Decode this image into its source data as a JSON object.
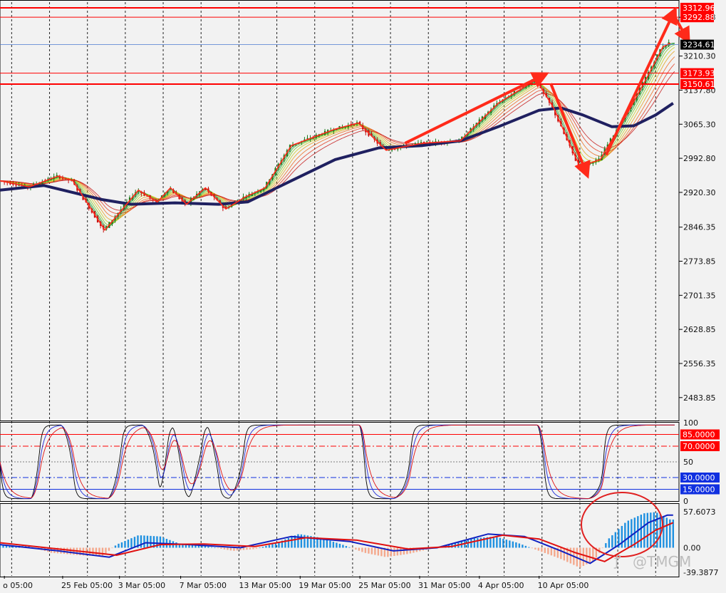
{
  "colors": {
    "background": "#f2f2f2",
    "grid": "#222222",
    "bull": "#1a7a1a",
    "bear": "#c01010",
    "ma_thick": "#1f2060",
    "level_red": "#ff0000",
    "price_line": "#4a7bd0",
    "arrow": "#ff2a1a",
    "osc_black": "#000000",
    "osc_blue": "#1f2ad8",
    "osc_red": "#e01010",
    "hist_pos": "#1e90e0",
    "hist_neg": "#f4a88c",
    "signal_blue": "#1020c0",
    "signal_red": "#e01010",
    "level_blue": "#1030e0",
    "ribbon": [
      "#0a7f2a",
      "#2aa52a",
      "#7ac41e",
      "#c7cf1a",
      "#e3a21b",
      "#ea6a1c",
      "#e33a1c",
      "#c41a1a"
    ]
  },
  "chart_data": [
    {
      "type": "candlestick",
      "title": "",
      "ylim": [
        2435,
        3325
      ],
      "y_ticks": [
        "3292.88",
        "3210.30",
        "3137.80",
        "3065.30",
        "2992.80",
        "2920.30",
        "2846.35",
        "2773.85",
        "2701.35",
        "2628.85",
        "2556.35",
        "2483.85"
      ],
      "x_ticks": [
        "o 05:00",
        "25 Feb 05:00",
        "3 Mar 05:00",
        "7 Mar 05:00",
        "13 Mar 05:00",
        "19 Mar 05:00",
        "25 Mar 05:00",
        "31 Mar 05:00",
        "4 Apr 05:00",
        "10 Apr 05:00"
      ],
      "swing_path": [
        {
          "t": 0,
          "y": 2945
        },
        {
          "t": 20,
          "y": 2932
        },
        {
          "t": 40,
          "y": 2955
        },
        {
          "t": 50,
          "y": 2945
        },
        {
          "t": 72,
          "y": 2840
        },
        {
          "t": 95,
          "y": 2925
        },
        {
          "t": 108,
          "y": 2900
        },
        {
          "t": 117,
          "y": 2930
        },
        {
          "t": 128,
          "y": 2895
        },
        {
          "t": 141,
          "y": 2930
        },
        {
          "t": 155,
          "y": 2885
        },
        {
          "t": 168,
          "y": 2910
        },
        {
          "t": 182,
          "y": 2930
        },
        {
          "t": 200,
          "y": 3020
        },
        {
          "t": 230,
          "y": 3055
        },
        {
          "t": 246,
          "y": 3068
        },
        {
          "t": 265,
          "y": 3010
        },
        {
          "t": 290,
          "y": 3025
        },
        {
          "t": 316,
          "y": 3030
        },
        {
          "t": 342,
          "y": 3110
        },
        {
          "t": 368,
          "y": 3160
        },
        {
          "t": 380,
          "y": 3100
        },
        {
          "t": 398,
          "y": 2975
        },
        {
          "t": 412,
          "y": 2990
        },
        {
          "t": 430,
          "y": 3085
        },
        {
          "t": 445,
          "y": 3170
        },
        {
          "t": 455,
          "y": 3230
        },
        {
          "t": 460,
          "y": 3238
        }
      ],
      "moving_average": [
        {
          "t": 0,
          "y": 2925
        },
        {
          "t": 30,
          "y": 2935
        },
        {
          "t": 70,
          "y": 2905
        },
        {
          "t": 90,
          "y": 2895
        },
        {
          "t": 120,
          "y": 2898
        },
        {
          "t": 150,
          "y": 2895
        },
        {
          "t": 170,
          "y": 2900
        },
        {
          "t": 200,
          "y": 2945
        },
        {
          "t": 230,
          "y": 2990
        },
        {
          "t": 260,
          "y": 3015
        },
        {
          "t": 290,
          "y": 3020
        },
        {
          "t": 316,
          "y": 3030
        },
        {
          "t": 342,
          "y": 3060
        },
        {
          "t": 370,
          "y": 3095
        },
        {
          "t": 385,
          "y": 3100
        },
        {
          "t": 400,
          "y": 3085
        },
        {
          "t": 420,
          "y": 3060
        },
        {
          "t": 435,
          "y": 3062
        },
        {
          "t": 450,
          "y": 3085
        },
        {
          "t": 462,
          "y": 3110
        }
      ],
      "horizontal_levels": [
        {
          "value": 3312.96,
          "label": "3312.96"
        },
        {
          "value": 3292.88,
          "label": "3292.88"
        },
        {
          "value": 3173.93,
          "label": "3173.93"
        },
        {
          "value": 3150.61,
          "label": "3150.61"
        }
      ],
      "current_price": {
        "value": 3234.61,
        "label": "3234.61"
      },
      "annotation_arrows": [
        [
          {
            "t": 278,
            "y": 3025
          },
          {
            "t": 372,
            "y": 3168
          }
        ],
        [
          {
            "t": 378,
            "y": 3152
          },
          {
            "t": 402,
            "y": 2965
          }
        ],
        [
          {
            "t": 416,
            "y": 3000
          },
          {
            "t": 462,
            "y": 3300
          }
        ],
        [
          {
            "t": 462,
            "y": 3300
          },
          {
            "t": 471,
            "y": 3250
          }
        ]
      ]
    },
    {
      "type": "line",
      "title": "",
      "ylim": [
        0,
        100
      ],
      "y_ticks": [
        "100",
        "50",
        "0"
      ],
      "levels": [
        {
          "value": 85,
          "label": "85.0000",
          "style": "solid",
          "color": "#ff0000"
        },
        {
          "value": 70,
          "label": "70.0000",
          "style": "dashdot",
          "color": "#ff0000"
        },
        {
          "value": 30,
          "label": "30.0000",
          "style": "dashdot",
          "color": "#1030e0"
        },
        {
          "value": 15,
          "label": "15.0000",
          "style": "solid",
          "color": "#1030e0"
        }
      ]
    },
    {
      "type": "bar",
      "title": "",
      "ylim": [
        -45,
        70
      ],
      "y_ticks": [
        "57.6073",
        "0.00",
        "-39.3877"
      ],
      "histogram": [
        {
          "t": 0,
          "y": 5
        },
        {
          "t": 20,
          "y": 2
        },
        {
          "t": 35,
          "y": -8
        },
        {
          "t": 55,
          "y": -12
        },
        {
          "t": 70,
          "y": -14
        },
        {
          "t": 80,
          "y": 5
        },
        {
          "t": 95,
          "y": 20
        },
        {
          "t": 110,
          "y": 18
        },
        {
          "t": 125,
          "y": 5
        },
        {
          "t": 140,
          "y": 3
        },
        {
          "t": 160,
          "y": -5
        },
        {
          "t": 175,
          "y": -2
        },
        {
          "t": 190,
          "y": 8
        },
        {
          "t": 205,
          "y": 22
        },
        {
          "t": 220,
          "y": 16
        },
        {
          "t": 235,
          "y": 5
        },
        {
          "t": 250,
          "y": -8
        },
        {
          "t": 265,
          "y": -15
        },
        {
          "t": 280,
          "y": -10
        },
        {
          "t": 295,
          "y": -2
        },
        {
          "t": 310,
          "y": 6
        },
        {
          "t": 325,
          "y": 15
        },
        {
          "t": 340,
          "y": 18
        },
        {
          "t": 355,
          "y": 8
        },
        {
          "t": 370,
          "y": -5
        },
        {
          "t": 385,
          "y": -18
        },
        {
          "t": 398,
          "y": -32
        },
        {
          "t": 408,
          "y": -20
        },
        {
          "t": 418,
          "y": 15
        },
        {
          "t": 430,
          "y": 42
        },
        {
          "t": 442,
          "y": 55
        },
        {
          "t": 450,
          "y": 57
        },
        {
          "t": 460,
          "y": 45
        }
      ],
      "signal_blue": [
        {
          "t": 0,
          "y": 5
        },
        {
          "t": 40,
          "y": -5
        },
        {
          "t": 75,
          "y": -15
        },
        {
          "t": 100,
          "y": 8
        },
        {
          "t": 130,
          "y": 5
        },
        {
          "t": 165,
          "y": 0
        },
        {
          "t": 200,
          "y": 18
        },
        {
          "t": 240,
          "y": 10
        },
        {
          "t": 270,
          "y": -5
        },
        {
          "t": 300,
          "y": 0
        },
        {
          "t": 335,
          "y": 22
        },
        {
          "t": 360,
          "y": 18
        },
        {
          "t": 385,
          "y": -5
        },
        {
          "t": 405,
          "y": -25
        },
        {
          "t": 425,
          "y": 5
        },
        {
          "t": 445,
          "y": 40
        },
        {
          "t": 458,
          "y": 52
        },
        {
          "t": 462,
          "y": 52
        }
      ],
      "signal_red": [
        {
          "t": 0,
          "y": 8
        },
        {
          "t": 40,
          "y": -2
        },
        {
          "t": 80,
          "y": -12
        },
        {
          "t": 110,
          "y": 5
        },
        {
          "t": 140,
          "y": 6
        },
        {
          "t": 175,
          "y": 2
        },
        {
          "t": 210,
          "y": 16
        },
        {
          "t": 245,
          "y": 12
        },
        {
          "t": 280,
          "y": -2
        },
        {
          "t": 310,
          "y": 2
        },
        {
          "t": 345,
          "y": 20
        },
        {
          "t": 370,
          "y": 14
        },
        {
          "t": 395,
          "y": -8
        },
        {
          "t": 415,
          "y": -22
        },
        {
          "t": 435,
          "y": 5
        },
        {
          "t": 450,
          "y": 28
        },
        {
          "t": 462,
          "y": 40
        }
      ]
    }
  ],
  "watermark": "@TMGM"
}
